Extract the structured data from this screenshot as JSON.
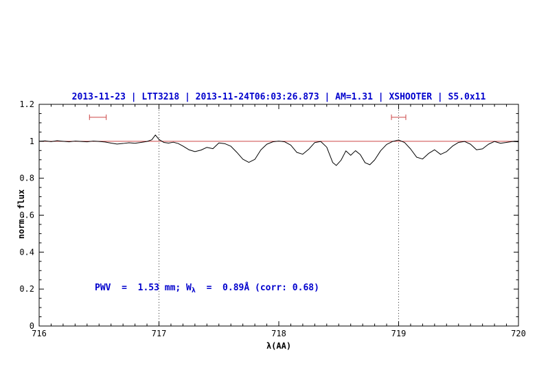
{
  "title": "2013-11-23 | LTT3218 | 2013-11-24T06:03:26.873 | AM=1.31 | XSHOOTER | S5.0x11",
  "annotation": {
    "part1": "PWV  =  1.53 mm; W",
    "sub": "λ",
    "part2": "  =  0.89Å (corr: 0.68)"
  },
  "colors": {
    "title": "#0000cd",
    "annotation": "#0000cd",
    "spectrum": "#000000",
    "continuum": "#cc4444",
    "marker": "#cc4444",
    "vline": "#000000",
    "axis": "#000000"
  },
  "chart_data": {
    "type": "line",
    "title": "2013-11-23 | LTT3218 | 2013-11-24T06:03:26.873 | AM=1.31 | XSHOOTER | S5.0x11",
    "xlabel": "λ(AA)",
    "ylabel": "norm. flux",
    "xlim": [
      716,
      720
    ],
    "ylim": [
      0,
      1.2
    ],
    "x_ticks": [
      716,
      717,
      718,
      719,
      720
    ],
    "x_tick_labels": [
      "716",
      "717",
      "718",
      "719",
      "720"
    ],
    "x_minor_step": 0.1,
    "y_ticks": [
      0,
      0.2,
      0.4,
      0.6,
      0.8,
      1,
      1.2
    ],
    "y_tick_labels": [
      "0",
      "0.2",
      "0.4",
      "0.6",
      "0.8",
      "1",
      "1.2"
    ],
    "y_minor_step": 0.05,
    "grid": false,
    "legend": "none",
    "vlines": [
      717,
      719
    ],
    "continuum_y": 1.0,
    "interval_markers": [
      {
        "x1": 716.42,
        "x2": 716.56,
        "y": 1.13
      },
      {
        "x1": 718.94,
        "x2": 719.06,
        "y": 1.13
      }
    ],
    "series": [
      {
        "name": "spectrum",
        "points": [
          [
            716.0,
            1.0
          ],
          [
            716.05,
            1.002
          ],
          [
            716.1,
            0.998
          ],
          [
            716.15,
            1.003
          ],
          [
            716.2,
            1.0
          ],
          [
            716.25,
            0.997
          ],
          [
            716.3,
            1.001
          ],
          [
            716.35,
            0.999
          ],
          [
            716.4,
            0.997
          ],
          [
            716.45,
            1.001
          ],
          [
            716.5,
            0.999
          ],
          [
            716.55,
            0.996
          ],
          [
            716.6,
            0.99
          ],
          [
            716.65,
            0.985
          ],
          [
            716.7,
            0.988
          ],
          [
            716.75,
            0.992
          ],
          [
            716.8,
            0.989
          ],
          [
            716.85,
            0.994
          ],
          [
            716.9,
            0.999
          ],
          [
            716.94,
            1.008
          ],
          [
            716.97,
            1.034
          ],
          [
            717.0,
            1.01
          ],
          [
            717.04,
            0.994
          ],
          [
            717.08,
            0.99
          ],
          [
            717.12,
            0.995
          ],
          [
            717.16,
            0.988
          ],
          [
            717.2,
            0.974
          ],
          [
            717.25,
            0.954
          ],
          [
            717.3,
            0.944
          ],
          [
            717.35,
            0.952
          ],
          [
            717.4,
            0.967
          ],
          [
            717.45,
            0.96
          ],
          [
            717.5,
            0.991
          ],
          [
            717.55,
            0.987
          ],
          [
            717.6,
            0.973
          ],
          [
            717.65,
            0.94
          ],
          [
            717.7,
            0.903
          ],
          [
            717.75,
            0.886
          ],
          [
            717.8,
            0.902
          ],
          [
            717.85,
            0.953
          ],
          [
            717.9,
            0.984
          ],
          [
            717.95,
            0.997
          ],
          [
            718.0,
            1.001
          ],
          [
            718.05,
            0.997
          ],
          [
            718.1,
            0.979
          ],
          [
            718.15,
            0.94
          ],
          [
            718.2,
            0.93
          ],
          [
            718.25,
            0.957
          ],
          [
            718.3,
            0.993
          ],
          [
            718.35,
            0.999
          ],
          [
            718.4,
            0.968
          ],
          [
            718.45,
            0.885
          ],
          [
            718.48,
            0.869
          ],
          [
            718.52,
            0.898
          ],
          [
            718.56,
            0.948
          ],
          [
            718.6,
            0.924
          ],
          [
            718.64,
            0.949
          ],
          [
            718.68,
            0.928
          ],
          [
            718.72,
            0.884
          ],
          [
            718.76,
            0.873
          ],
          [
            718.8,
            0.899
          ],
          [
            718.85,
            0.949
          ],
          [
            718.9,
            0.983
          ],
          [
            718.95,
            0.999
          ],
          [
            719.0,
            1.007
          ],
          [
            719.05,
            0.993
          ],
          [
            719.1,
            0.958
          ],
          [
            719.15,
            0.914
          ],
          [
            719.2,
            0.904
          ],
          [
            719.25,
            0.934
          ],
          [
            719.3,
            0.954
          ],
          [
            719.35,
            0.929
          ],
          [
            719.4,
            0.944
          ],
          [
            719.45,
            0.974
          ],
          [
            719.5,
            0.994
          ],
          [
            719.55,
            0.999
          ],
          [
            719.6,
            0.984
          ],
          [
            719.65,
            0.954
          ],
          [
            719.7,
            0.959
          ],
          [
            719.75,
            0.984
          ],
          [
            719.8,
            0.999
          ],
          [
            719.85,
            0.989
          ],
          [
            719.9,
            0.994
          ],
          [
            719.95,
            0.999
          ],
          [
            720.0,
            0.997
          ]
        ]
      }
    ]
  }
}
